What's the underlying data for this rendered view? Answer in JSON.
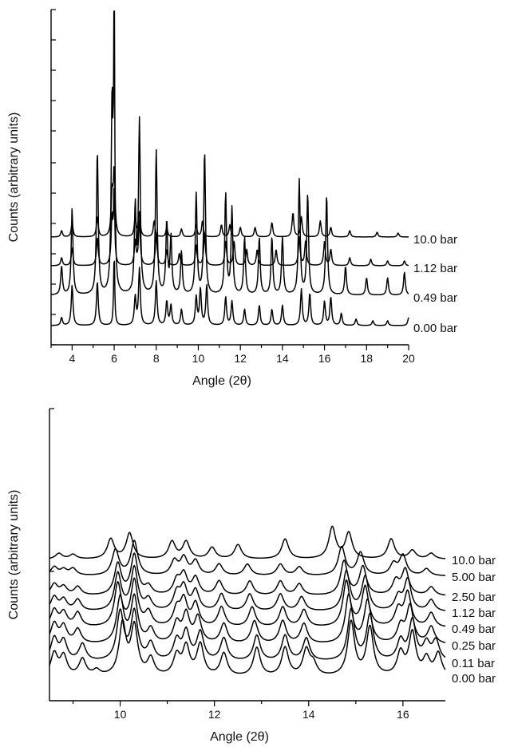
{
  "chart_data": [
    {
      "type": "line",
      "xlabel": "Angle (2θ)",
      "ylabel": "Counts (arbitrary units)",
      "xlim": [
        3,
        20
      ],
      "xticks": [
        4,
        6,
        8,
        10,
        12,
        14,
        16,
        18,
        20
      ],
      "grid": false,
      "series": [
        {
          "name": "0.00 bar",
          "peaks": [
            [
              3.5,
              0.1
            ],
            [
              4.0,
              0.5
            ],
            [
              5.2,
              0.55
            ],
            [
              6.0,
              0.9
            ],
            [
              7.0,
              0.35
            ],
            [
              7.2,
              0.7
            ],
            [
              8.0,
              0.55
            ],
            [
              8.5,
              0.3
            ],
            [
              8.7,
              0.25
            ],
            [
              9.2,
              0.2
            ],
            [
              9.9,
              0.35
            ],
            [
              10.1,
              0.45
            ],
            [
              10.4,
              0.5
            ],
            [
              11.3,
              0.35
            ],
            [
              11.6,
              0.3
            ],
            [
              12.2,
              0.2
            ],
            [
              12.9,
              0.25
            ],
            [
              13.5,
              0.2
            ],
            [
              14.0,
              0.25
            ],
            [
              14.9,
              0.45
            ],
            [
              15.3,
              0.4
            ],
            [
              16.0,
              0.3
            ],
            [
              16.3,
              0.35
            ],
            [
              16.8,
              0.15
            ],
            [
              17.5,
              0.08
            ],
            [
              18.3,
              0.06
            ],
            [
              19.0,
              0.06
            ],
            [
              20.0,
              0.1
            ]
          ]
        },
        {
          "name": "0.49 bar",
          "peaks": [
            [
              3.5,
              0.1
            ],
            [
              4.0,
              0.3
            ],
            [
              5.2,
              0.5
            ],
            [
              5.9,
              0.65
            ],
            [
              6.0,
              1.0
            ],
            [
              7.0,
              0.3
            ],
            [
              7.2,
              0.6
            ],
            [
              8.0,
              0.5
            ],
            [
              8.5,
              0.25
            ],
            [
              8.7,
              0.2
            ],
            [
              9.2,
              0.15
            ],
            [
              9.9,
              0.35
            ],
            [
              10.3,
              0.5
            ],
            [
              11.3,
              0.35
            ],
            [
              11.6,
              0.3
            ],
            [
              12.2,
              0.2
            ],
            [
              12.9,
              0.2
            ],
            [
              13.5,
              0.2
            ],
            [
              14.0,
              0.2
            ],
            [
              14.8,
              0.4
            ],
            [
              15.2,
              0.35
            ],
            [
              16.1,
              0.35
            ],
            [
              17.0,
              0.1
            ],
            [
              18.0,
              0.06
            ],
            [
              19.0,
              0.06
            ],
            [
              19.8,
              0.08
            ]
          ]
        },
        {
          "name": "1.12 bar",
          "peaks": [
            [
              3.5,
              0.1
            ],
            [
              4.0,
              0.22
            ],
            [
              5.2,
              0.35
            ],
            [
              5.9,
              0.6
            ],
            [
              6.0,
              0.95
            ],
            [
              7.0,
              0.3
            ],
            [
              7.2,
              0.55
            ],
            [
              8.0,
              0.4
            ],
            [
              8.5,
              0.2
            ],
            [
              9.1,
              0.15
            ],
            [
              9.9,
              0.25
            ],
            [
              10.3,
              0.4
            ],
            [
              11.3,
              0.3
            ],
            [
              11.7,
              0.3
            ],
            [
              12.3,
              0.2
            ],
            [
              12.8,
              0.2
            ],
            [
              13.7,
              0.2
            ],
            [
              14.8,
              0.35
            ],
            [
              15.1,
              0.3
            ],
            [
              16.0,
              0.3
            ],
            [
              16.3,
              0.2
            ],
            [
              17.2,
              0.1
            ],
            [
              18.2,
              0.08
            ],
            [
              19.0,
              0.06
            ],
            [
              19.8,
              0.06
            ]
          ]
        },
        {
          "name": "10.0 bar",
          "peaks": [
            [
              3.5,
              0.08
            ],
            [
              4.0,
              0.18
            ],
            [
              5.2,
              0.25
            ],
            [
              5.9,
              0.5
            ],
            [
              6.0,
              0.8
            ],
            [
              7.0,
              0.25
            ],
            [
              7.2,
              0.3
            ],
            [
              7.9,
              0.2
            ],
            [
              8.5,
              0.12
            ],
            [
              9.2,
              0.1
            ],
            [
              9.9,
              0.15
            ],
            [
              10.2,
              0.2
            ],
            [
              11.1,
              0.15
            ],
            [
              11.5,
              0.15
            ],
            [
              12.0,
              0.12
            ],
            [
              12.7,
              0.12
            ],
            [
              13.5,
              0.18
            ],
            [
              14.5,
              0.3
            ],
            [
              14.9,
              0.25
            ],
            [
              15.8,
              0.2
            ],
            [
              16.3,
              0.12
            ],
            [
              17.2,
              0.08
            ],
            [
              18.5,
              0.06
            ],
            [
              19.5,
              0.05
            ]
          ]
        }
      ]
    },
    {
      "type": "line",
      "xlabel": "Angle (2θ)",
      "ylabel": "Counts (arbitrary units)",
      "xlim": [
        8.5,
        16.9
      ],
      "xticks": [
        10,
        12,
        14,
        16
      ],
      "grid": false,
      "series": [
        {
          "name": "0.00 bar",
          "peaks": [
            [
              8.6,
              0.4
            ],
            [
              8.8,
              0.35
            ],
            [
              9.2,
              0.3
            ],
            [
              9.5,
              0.1
            ],
            [
              10.05,
              0.9
            ],
            [
              10.3,
              0.85
            ],
            [
              10.65,
              0.3
            ],
            [
              11.2,
              0.35
            ],
            [
              11.4,
              0.5
            ],
            [
              11.7,
              0.55
            ],
            [
              12.2,
              0.4
            ],
            [
              12.9,
              0.5
            ],
            [
              13.5,
              0.5
            ],
            [
              13.95,
              0.45
            ],
            [
              14.1,
              0.2
            ],
            [
              14.9,
              0.95
            ],
            [
              15.3,
              0.85
            ],
            [
              15.95,
              0.4
            ],
            [
              16.2,
              0.75
            ],
            [
              16.5,
              0.3
            ],
            [
              16.75,
              0.4
            ]
          ]
        },
        {
          "name": "0.11 bar",
          "peaks": [
            [
              8.6,
              0.4
            ],
            [
              8.8,
              0.35
            ],
            [
              9.2,
              0.3
            ],
            [
              10.0,
              0.85
            ],
            [
              10.3,
              0.85
            ],
            [
              10.65,
              0.3
            ],
            [
              11.2,
              0.35
            ],
            [
              11.4,
              0.5
            ],
            [
              11.7,
              0.5
            ],
            [
              12.2,
              0.4
            ],
            [
              12.9,
              0.45
            ],
            [
              13.5,
              0.45
            ],
            [
              13.95,
              0.4
            ],
            [
              14.9,
              0.9
            ],
            [
              15.3,
              0.8
            ],
            [
              15.95,
              0.35
            ],
            [
              16.2,
              0.7
            ],
            [
              16.5,
              0.3
            ],
            [
              16.7,
              0.35
            ]
          ]
        },
        {
          "name": "0.25 bar",
          "peaks": [
            [
              8.6,
              0.35
            ],
            [
              8.8,
              0.3
            ],
            [
              9.1,
              0.25
            ],
            [
              10.0,
              0.8
            ],
            [
              10.3,
              0.8
            ],
            [
              10.65,
              0.25
            ],
            [
              11.2,
              0.35
            ],
            [
              11.4,
              0.5
            ],
            [
              11.65,
              0.45
            ],
            [
              12.2,
              0.35
            ],
            [
              12.85,
              0.4
            ],
            [
              13.45,
              0.4
            ],
            [
              13.9,
              0.35
            ],
            [
              14.85,
              0.85
            ],
            [
              15.25,
              0.75
            ],
            [
              15.95,
              0.3
            ],
            [
              16.15,
              0.65
            ],
            [
              16.6,
              0.3
            ]
          ]
        },
        {
          "name": "0.49 bar",
          "peaks": [
            [
              8.6,
              0.3
            ],
            [
              8.8,
              0.25
            ],
            [
              9.1,
              0.25
            ],
            [
              9.95,
              0.75
            ],
            [
              10.3,
              0.8
            ],
            [
              10.6,
              0.25
            ],
            [
              11.2,
              0.3
            ],
            [
              11.35,
              0.45
            ],
            [
              11.6,
              0.4
            ],
            [
              12.15,
              0.35
            ],
            [
              12.8,
              0.35
            ],
            [
              13.45,
              0.35
            ],
            [
              13.9,
              0.3
            ],
            [
              14.8,
              0.8
            ],
            [
              15.2,
              0.7
            ],
            [
              15.9,
              0.3
            ],
            [
              16.1,
              0.6
            ],
            [
              16.6,
              0.25
            ]
          ]
        },
        {
          "name": "1.12 bar",
          "peaks": [
            [
              8.6,
              0.25
            ],
            [
              8.8,
              0.2
            ],
            [
              9.1,
              0.2
            ],
            [
              9.95,
              0.65
            ],
            [
              10.3,
              0.75
            ],
            [
              10.6,
              0.2
            ],
            [
              11.2,
              0.3
            ],
            [
              11.35,
              0.4
            ],
            [
              11.6,
              0.35
            ],
            [
              12.15,
              0.3
            ],
            [
              12.75,
              0.3
            ],
            [
              13.4,
              0.3
            ],
            [
              13.85,
              0.25
            ],
            [
              14.8,
              0.7
            ],
            [
              15.2,
              0.6
            ],
            [
              15.9,
              0.25
            ],
            [
              16.1,
              0.55
            ],
            [
              16.6,
              0.2
            ]
          ]
        },
        {
          "name": "2.50 bar",
          "peaks": [
            [
              8.6,
              0.2
            ],
            [
              8.8,
              0.15
            ],
            [
              9.1,
              0.15
            ],
            [
              9.95,
              0.55
            ],
            [
              10.3,
              0.7
            ],
            [
              10.6,
              0.15
            ],
            [
              11.2,
              0.25
            ],
            [
              11.35,
              0.35
            ],
            [
              11.6,
              0.3
            ],
            [
              12.1,
              0.25
            ],
            [
              12.75,
              0.25
            ],
            [
              13.4,
              0.25
            ],
            [
              13.8,
              0.2
            ],
            [
              14.75,
              0.6
            ],
            [
              15.15,
              0.5
            ],
            [
              15.85,
              0.25
            ],
            [
              16.05,
              0.45
            ],
            [
              16.6,
              0.15
            ]
          ]
        },
        {
          "name": "5.00 bar",
          "peaks": [
            [
              8.6,
              0.15
            ],
            [
              8.8,
              0.1
            ],
            [
              9.0,
              0.12
            ],
            [
              9.9,
              0.45
            ],
            [
              10.3,
              0.6
            ],
            [
              11.15,
              0.25
            ],
            [
              11.35,
              0.3
            ],
            [
              11.6,
              0.25
            ],
            [
              12.1,
              0.2
            ],
            [
              12.7,
              0.2
            ],
            [
              13.4,
              0.2
            ],
            [
              13.8,
              0.15
            ],
            [
              14.7,
              0.5
            ],
            [
              15.1,
              0.4
            ],
            [
              15.8,
              0.2
            ],
            [
              16.0,
              0.35
            ],
            [
              16.5,
              0.12
            ]
          ]
        },
        {
          "name": "10.0 bar",
          "peaks": [
            [
              8.7,
              0.1
            ],
            [
              9.0,
              0.08
            ],
            [
              9.8,
              0.35
            ],
            [
              10.2,
              0.45
            ],
            [
              11.1,
              0.3
            ],
            [
              11.4,
              0.3
            ],
            [
              11.95,
              0.2
            ],
            [
              12.5,
              0.25
            ],
            [
              13.5,
              0.35
            ],
            [
              14.5,
              0.55
            ],
            [
              14.85,
              0.45
            ],
            [
              15.75,
              0.35
            ],
            [
              16.2,
              0.15
            ],
            [
              16.6,
              0.1
            ]
          ]
        }
      ]
    }
  ]
}
